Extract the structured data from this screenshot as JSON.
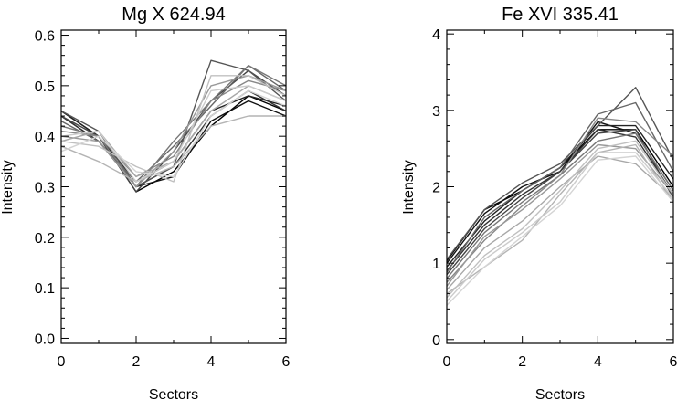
{
  "chart_data": [
    {
      "type": "line",
      "title": "Mg X 624.94",
      "xlabel": "Sectors",
      "ylabel": "Intensity",
      "xlim": [
        0,
        6
      ],
      "ylim": [
        -0.01,
        0.61
      ],
      "xticks": [
        "0",
        "2",
        "4",
        "6"
      ],
      "yticks": [
        "0.0",
        "0.1",
        "0.2",
        "0.3",
        "0.4",
        "0.5",
        "0.6"
      ],
      "grid": false,
      "legend": "none",
      "x": [
        0,
        1,
        2,
        3,
        4,
        5,
        6
      ],
      "series": [
        {
          "color": "#000000",
          "values": [
            0.45,
            0.4,
            0.29,
            0.33,
            0.42,
            0.48,
            0.45
          ]
        },
        {
          "color": "#111111",
          "values": [
            0.44,
            0.39,
            0.3,
            0.32,
            0.43,
            0.47,
            0.44
          ]
        },
        {
          "color": "#222222",
          "values": [
            0.45,
            0.4,
            0.31,
            0.35,
            0.45,
            0.48,
            0.46
          ]
        },
        {
          "color": "#333333",
          "values": [
            0.44,
            0.39,
            0.3,
            0.34,
            0.44,
            0.49,
            0.45
          ]
        },
        {
          "color": "#444444",
          "values": [
            0.44,
            0.4,
            0.29,
            0.37,
            0.47,
            0.53,
            0.48
          ]
        },
        {
          "color": "#555555",
          "values": [
            0.45,
            0.41,
            0.3,
            0.34,
            0.55,
            0.53,
            0.47
          ]
        },
        {
          "color": "#666666",
          "values": [
            0.43,
            0.39,
            0.31,
            0.38,
            0.46,
            0.54,
            0.49
          ]
        },
        {
          "color": "#777777",
          "values": [
            0.42,
            0.4,
            0.3,
            0.39,
            0.47,
            0.54,
            0.5
          ]
        },
        {
          "color": "#888888",
          "values": [
            0.41,
            0.4,
            0.32,
            0.36,
            0.47,
            0.51,
            0.49
          ]
        },
        {
          "color": "#999999",
          "values": [
            0.4,
            0.39,
            0.3,
            0.37,
            0.5,
            0.52,
            0.49
          ]
        },
        {
          "color": "#a8a8a8",
          "values": [
            0.39,
            0.41,
            0.32,
            0.35,
            0.45,
            0.5,
            0.47
          ]
        },
        {
          "color": "#b4b4b4",
          "values": [
            0.38,
            0.35,
            0.31,
            0.34,
            0.42,
            0.44,
            0.44
          ]
        },
        {
          "color": "#c0c0c0",
          "values": [
            0.39,
            0.38,
            0.34,
            0.31,
            0.52,
            0.52,
            0.48
          ]
        },
        {
          "color": "#cccccc",
          "values": [
            0.4,
            0.41,
            0.31,
            0.35,
            0.49,
            0.5,
            0.47
          ]
        },
        {
          "color": "#d4d4d4",
          "values": [
            0.37,
            0.4,
            0.33,
            0.32,
            0.44,
            0.49,
            0.46
          ]
        }
      ]
    },
    {
      "type": "line",
      "title": "Fe XVI 335.41",
      "xlabel": "Sectors",
      "ylabel": "Intensity",
      "xlim": [
        0,
        6
      ],
      "ylim": [
        -0.05,
        4.05
      ],
      "xticks": [
        "0",
        "2",
        "4",
        "6"
      ],
      "yticks": [
        "0",
        "1",
        "2",
        "3",
        "4"
      ],
      "grid": false,
      "legend": "none",
      "x": [
        0,
        1,
        2,
        3,
        4,
        5,
        6
      ],
      "series": [
        {
          "color": "#000000",
          "values": [
            1.03,
            1.7,
            1.95,
            2.25,
            2.75,
            2.75,
            2.0
          ]
        },
        {
          "color": "#111111",
          "values": [
            1.0,
            1.65,
            2.0,
            2.2,
            2.85,
            2.7,
            1.95
          ]
        },
        {
          "color": "#222222",
          "values": [
            0.95,
            1.55,
            1.95,
            2.25,
            2.8,
            2.8,
            2.1
          ]
        },
        {
          "color": "#333333",
          "values": [
            0.9,
            1.5,
            1.9,
            2.2,
            2.75,
            2.65,
            1.9
          ]
        },
        {
          "color": "#444444",
          "values": [
            0.85,
            1.45,
            1.85,
            2.2,
            2.7,
            2.75,
            1.85
          ]
        },
        {
          "color": "#555555",
          "values": [
            1.05,
            1.7,
            2.05,
            2.3,
            2.8,
            3.3,
            2.35
          ]
        },
        {
          "color": "#666666",
          "values": [
            0.88,
            1.6,
            1.95,
            2.25,
            2.95,
            3.1,
            2.2
          ]
        },
        {
          "color": "#777777",
          "values": [
            0.8,
            1.4,
            1.8,
            2.15,
            2.6,
            2.7,
            1.95
          ]
        },
        {
          "color": "#888888",
          "values": [
            0.75,
            1.3,
            1.75,
            2.15,
            2.9,
            2.85,
            2.4
          ]
        },
        {
          "color": "#999999",
          "values": [
            0.7,
            1.35,
            1.7,
            2.1,
            2.55,
            2.5,
            1.9
          ]
        },
        {
          "color": "#a8a8a8",
          "values": [
            0.65,
            1.2,
            1.55,
            2.0,
            2.4,
            2.3,
            1.85
          ]
        },
        {
          "color": "#b4b4b4",
          "values": [
            0.6,
            0.95,
            1.3,
            1.9,
            2.45,
            2.55,
            1.8
          ]
        },
        {
          "color": "#c0c0c0",
          "values": [
            0.55,
            1.1,
            1.45,
            1.95,
            2.5,
            2.6,
            1.9
          ]
        },
        {
          "color": "#cccccc",
          "values": [
            0.5,
            1.05,
            1.4,
            1.8,
            2.45,
            2.45,
            1.85
          ]
        },
        {
          "color": "#d4d4d4",
          "values": [
            0.45,
            0.95,
            1.35,
            1.75,
            2.35,
            2.4,
            1.8
          ]
        }
      ]
    }
  ]
}
